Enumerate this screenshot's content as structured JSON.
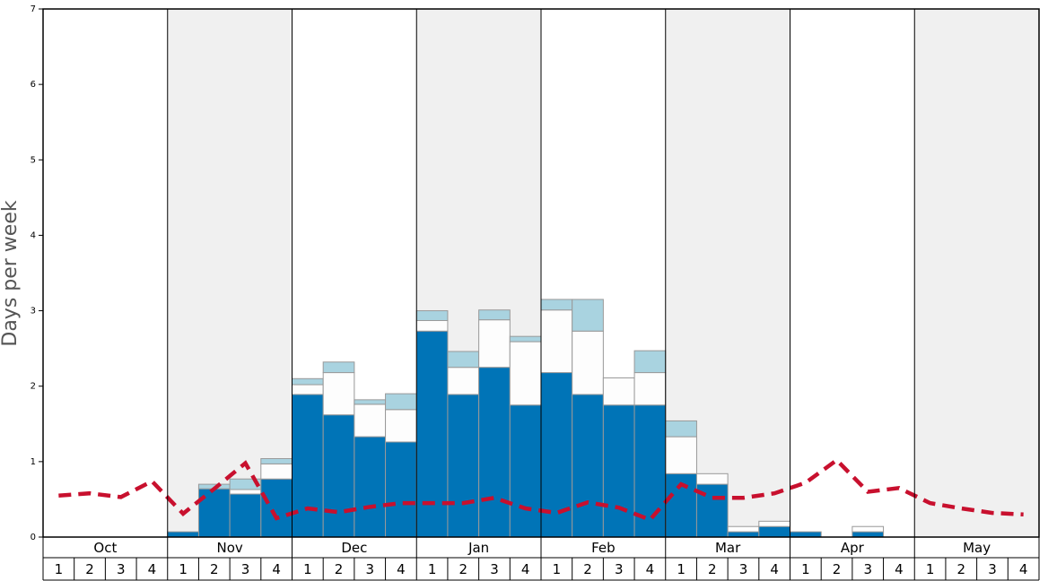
{
  "chart_data": {
    "type": "bar",
    "ylabel": "Days per week",
    "months": [
      "Oct",
      "Nov",
      "Dec",
      "Jan",
      "Feb",
      "Mar",
      "Apr",
      "May"
    ],
    "categories": [
      "1",
      "2",
      "3",
      "4",
      "1",
      "2",
      "3",
      "4",
      "1",
      "2",
      "3",
      "4",
      "1",
      "2",
      "3",
      "4",
      "1",
      "2",
      "3",
      "4",
      "1",
      "2",
      "3",
      "4",
      "1",
      "2",
      "3",
      "4",
      "1",
      "2",
      "3",
      "4"
    ],
    "series": [
      {
        "color": "#0074b7",
        "values": [
          0,
          0,
          0,
          0,
          0.07,
          0.64,
          0.57,
          0.77,
          1.89,
          1.62,
          1.33,
          1.26,
          2.73,
          1.89,
          2.25,
          1.75,
          2.18,
          1.89,
          1.75,
          1.75,
          0.84,
          0.7,
          0.07,
          0.14,
          0.07,
          0,
          0.07,
          0,
          0,
          0,
          0,
          0
        ]
      },
      {
        "color": "#fdfdfd",
        "values": [
          0,
          0,
          0,
          0,
          0,
          0,
          0.06,
          0.2,
          0.13,
          0.56,
          0.43,
          0.43,
          0.14,
          0.36,
          0.63,
          0.84,
          0.83,
          0.84,
          0.36,
          0.43,
          0.49,
          0.14,
          0.07,
          0.07,
          0,
          0,
          0.07,
          0,
          0,
          0,
          0,
          0
        ]
      },
      {
        "color": "#a9d3e0",
        "values": [
          0,
          0,
          0,
          0,
          0,
          0.06,
          0.14,
          0.07,
          0.08,
          0.14,
          0.06,
          0.21,
          0.13,
          0.21,
          0.13,
          0.07,
          0.14,
          0.42,
          0,
          0.29,
          0.21,
          0,
          0,
          0,
          0,
          0,
          0,
          0,
          0,
          0,
          0,
          0
        ]
      }
    ],
    "line": {
      "color": "#c8102e",
      "values": [
        0.55,
        0.58,
        0.53,
        0.74,
        0.31,
        0.64,
        0.98,
        0.25,
        0.38,
        0.33,
        0.4,
        0.45,
        0.45,
        0.45,
        0.52,
        0.38,
        0.32,
        0.46,
        0.39,
        0.23,
        0.7,
        0.52,
        0.52,
        0.58,
        0.72,
        1.02,
        0.6,
        0.65,
        0.45,
        0.38,
        0.32,
        0.3
      ]
    },
    "ylim": [
      0,
      7
    ],
    "yticks": [
      0,
      1,
      2,
      3,
      4,
      5,
      6,
      7
    ]
  }
}
